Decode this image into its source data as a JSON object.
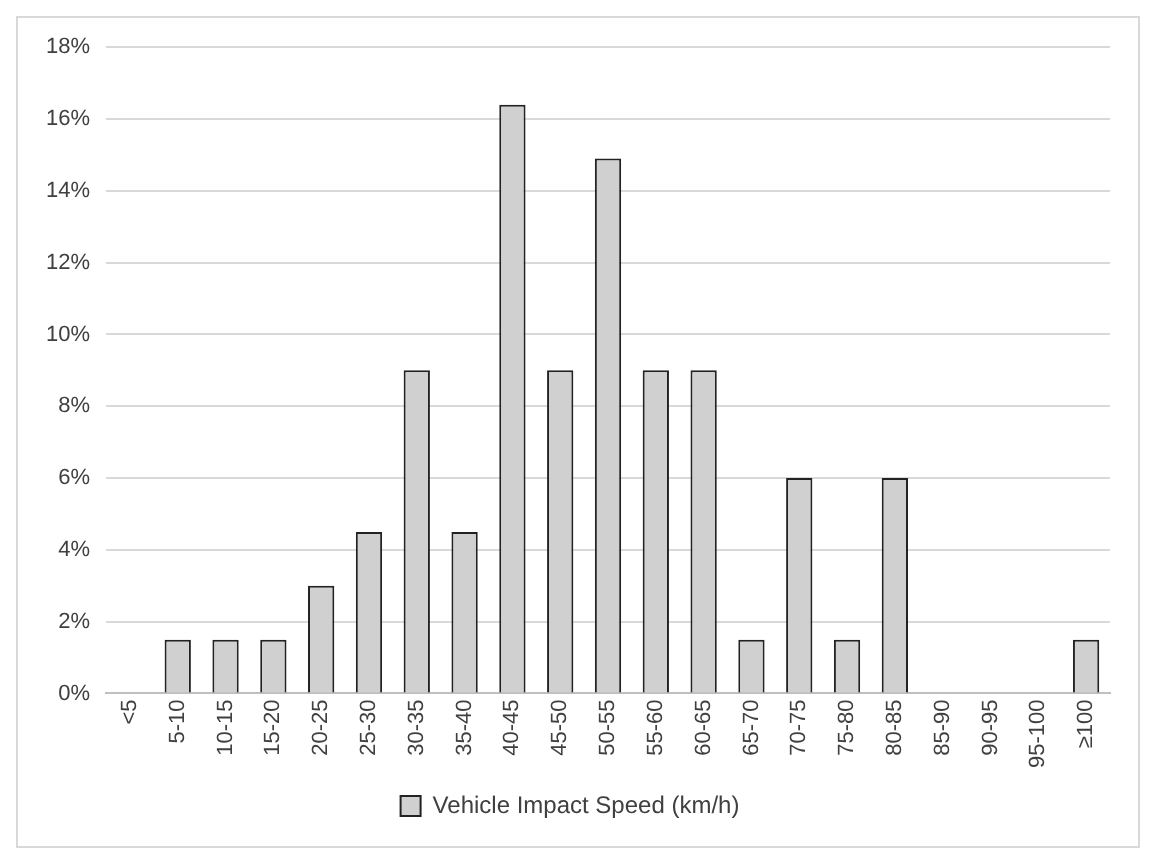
{
  "chart_data": {
    "type": "bar",
    "categories": [
      "<5",
      "5-10",
      "10-15",
      "15-20",
      "20-25",
      "25-30",
      "30-35",
      "35-40",
      "40-45",
      "45-50",
      "50-55",
      "55-60",
      "60-65",
      "65-70",
      "70-75",
      "75-80",
      "80-85",
      "85-90",
      "90-95",
      "95-100",
      "≥100"
    ],
    "series": [
      {
        "name": "Vehicle Impact Speed (km/h)",
        "color": "#d0d0d0",
        "values": [
          0,
          1.5,
          1.5,
          1.5,
          3.0,
          4.5,
          9.0,
          4.5,
          16.4,
          9.0,
          14.9,
          9.0,
          9.0,
          1.5,
          6.0,
          1.5,
          6.0,
          0,
          0,
          0,
          1.5
        ]
      }
    ],
    "ylim": [
      0,
      18
    ],
    "yticks": [
      {
        "value": 0,
        "label": "0%"
      },
      {
        "value": 2,
        "label": "2%"
      },
      {
        "value": 4,
        "label": "4%"
      },
      {
        "value": 6,
        "label": "6%"
      },
      {
        "value": 8,
        "label": "8%"
      },
      {
        "value": 10,
        "label": "10%"
      },
      {
        "value": 12,
        "label": "12%"
      },
      {
        "value": 14,
        "label": "14%"
      },
      {
        "value": 16,
        "label": "16%"
      },
      {
        "value": 18,
        "label": "18%"
      }
    ],
    "grid": "y",
    "legend": "bottom"
  }
}
